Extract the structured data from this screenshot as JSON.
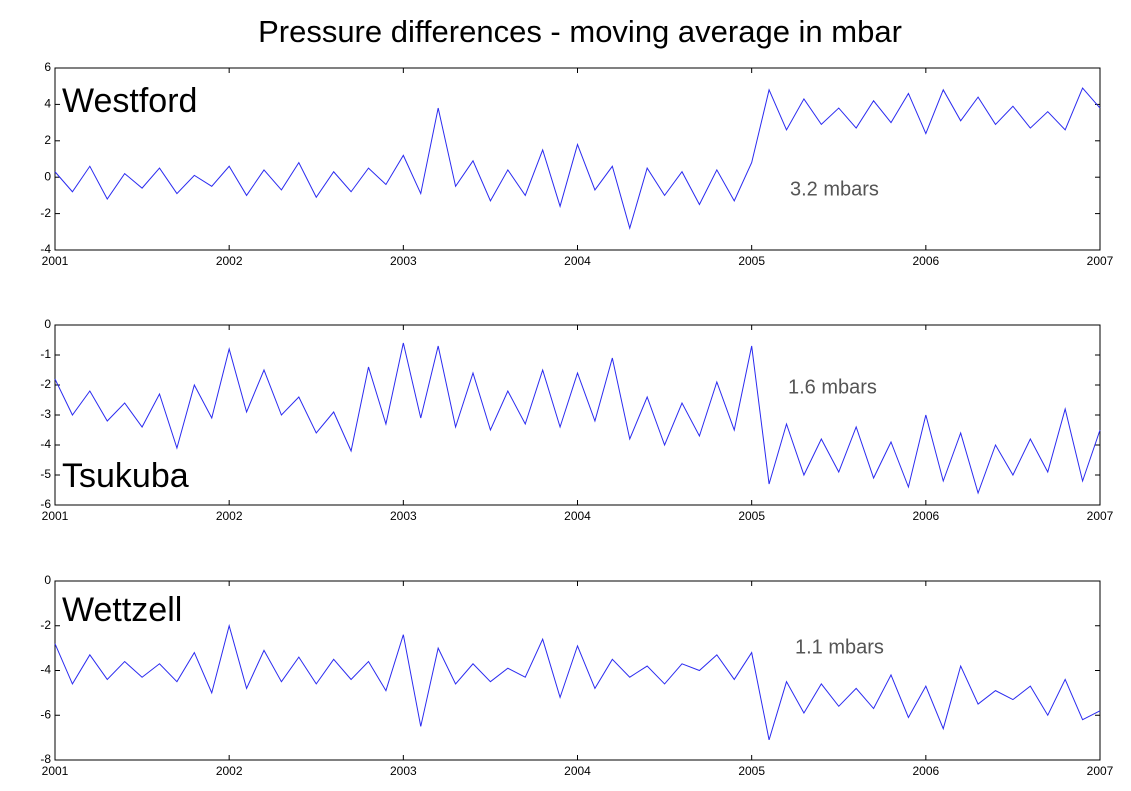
{
  "title": "Pressure differences - moving average in mbar",
  "chart_data": [
    {
      "type": "line",
      "label": "Westford",
      "annotation": "3.2 mbars",
      "color": "#2b2bf0",
      "xlim": [
        2001,
        2007
      ],
      "xticks": [
        2001,
        2002,
        2003,
        2004,
        2005,
        2006,
        2007
      ],
      "ylim": [
        -4,
        6
      ],
      "yticks": [
        -4,
        -2,
        0,
        2,
        4,
        6
      ],
      "x": [
        2001,
        2001.1,
        2001.2,
        2001.3,
        2001.4,
        2001.5,
        2001.6,
        2001.7,
        2001.8,
        2001.9,
        2002,
        2002.1,
        2002.2,
        2002.3,
        2002.4,
        2002.5,
        2002.6,
        2002.7,
        2002.8,
        2002.9,
        2003,
        2003.1,
        2003.2,
        2003.3,
        2003.4,
        2003.5,
        2003.6,
        2003.7,
        2003.8,
        2003.9,
        2004,
        2004.1,
        2004.2,
        2004.3,
        2004.4,
        2004.5,
        2004.6,
        2004.7,
        2004.8,
        2004.9,
        2005,
        2005.1,
        2005.2,
        2005.3,
        2005.4,
        2005.5,
        2005.6,
        2005.7,
        2005.8,
        2005.9,
        2006,
        2006.1,
        2006.2,
        2006.3,
        2006.4,
        2006.5,
        2006.6,
        2006.7,
        2006.8,
        2006.9,
        2007
      ],
      "values": [
        0.3,
        -0.8,
        0.6,
        -1.2,
        0.2,
        -0.6,
        0.5,
        -0.9,
        0.1,
        -0.5,
        0.6,
        -1.0,
        0.4,
        -0.7,
        0.8,
        -1.1,
        0.3,
        -0.8,
        0.5,
        -0.4,
        1.2,
        -0.9,
        3.8,
        -0.5,
        0.9,
        -1.3,
        0.4,
        -1.0,
        1.5,
        -1.6,
        1.8,
        -0.7,
        0.6,
        -2.8,
        0.5,
        -1.0,
        0.3,
        -1.5,
        0.4,
        -1.3,
        0.8,
        4.8,
        2.6,
        4.3,
        2.9,
        3.8,
        2.7,
        4.2,
        3.0,
        4.6,
        2.4,
        4.8,
        3.1,
        4.4,
        2.9,
        3.9,
        2.7,
        3.6,
        2.6,
        4.9,
        3.8
      ]
    },
    {
      "type": "line",
      "label": "Tsukuba",
      "annotation": "1.6 mbars",
      "color": "#2b2bf0",
      "xlim": [
        2001,
        2007
      ],
      "xticks": [
        2001,
        2002,
        2003,
        2004,
        2005,
        2006,
        2007
      ],
      "ylim": [
        -6,
        0
      ],
      "yticks": [
        -6,
        -5,
        -4,
        -3,
        -2,
        -1,
        0
      ],
      "x": [
        2001,
        2001.1,
        2001.2,
        2001.3,
        2001.4,
        2001.5,
        2001.6,
        2001.7,
        2001.8,
        2001.9,
        2002,
        2002.1,
        2002.2,
        2002.3,
        2002.4,
        2002.5,
        2002.6,
        2002.7,
        2002.8,
        2002.9,
        2003,
        2003.1,
        2003.2,
        2003.3,
        2003.4,
        2003.5,
        2003.6,
        2003.7,
        2003.8,
        2003.9,
        2004,
        2004.1,
        2004.2,
        2004.3,
        2004.4,
        2004.5,
        2004.6,
        2004.7,
        2004.8,
        2004.9,
        2005,
        2005.1,
        2005.2,
        2005.3,
        2005.4,
        2005.5,
        2005.6,
        2005.7,
        2005.8,
        2005.9,
        2006,
        2006.1,
        2006.2,
        2006.3,
        2006.4,
        2006.5,
        2006.6,
        2006.7,
        2006.8,
        2006.9,
        2007
      ],
      "values": [
        -1.8,
        -3.0,
        -2.2,
        -3.2,
        -2.6,
        -3.4,
        -2.3,
        -4.1,
        -2.0,
        -3.1,
        -0.8,
        -2.9,
        -1.5,
        -3.0,
        -2.4,
        -3.6,
        -2.9,
        -4.2,
        -1.4,
        -3.3,
        -0.6,
        -3.1,
        -0.7,
        -3.4,
        -1.6,
        -3.5,
        -2.2,
        -3.3,
        -1.5,
        -3.4,
        -1.6,
        -3.2,
        -1.1,
        -3.8,
        -2.4,
        -4.0,
        -2.6,
        -3.7,
        -1.9,
        -3.5,
        -0.7,
        -5.3,
        -3.3,
        -5.0,
        -3.8,
        -4.9,
        -3.4,
        -5.1,
        -3.9,
        -5.4,
        -3.0,
        -5.2,
        -3.6,
        -5.6,
        -4.0,
        -5.0,
        -3.8,
        -4.9,
        -2.8,
        -5.2,
        -3.5
      ]
    },
    {
      "type": "line",
      "label": "Wettzell",
      "annotation": "1.1 mbars",
      "color": "#2b2bf0",
      "xlim": [
        2001,
        2007
      ],
      "xticks": [
        2001,
        2002,
        2003,
        2004,
        2005,
        2006,
        2007
      ],
      "ylim": [
        -8,
        0
      ],
      "yticks": [
        -8,
        -6,
        -4,
        -2,
        0
      ],
      "x": [
        2001,
        2001.1,
        2001.2,
        2001.3,
        2001.4,
        2001.5,
        2001.6,
        2001.7,
        2001.8,
        2001.9,
        2002,
        2002.1,
        2002.2,
        2002.3,
        2002.4,
        2002.5,
        2002.6,
        2002.7,
        2002.8,
        2002.9,
        2003,
        2003.1,
        2003.2,
        2003.3,
        2003.4,
        2003.5,
        2003.6,
        2003.7,
        2003.8,
        2003.9,
        2004,
        2004.1,
        2004.2,
        2004.3,
        2004.4,
        2004.5,
        2004.6,
        2004.7,
        2004.8,
        2004.9,
        2005,
        2005.1,
        2005.2,
        2005.3,
        2005.4,
        2005.5,
        2005.6,
        2005.7,
        2005.8,
        2005.9,
        2006,
        2006.1,
        2006.2,
        2006.3,
        2006.4,
        2006.5,
        2006.6,
        2006.7,
        2006.8,
        2006.9,
        2007
      ],
      "values": [
        -2.8,
        -4.6,
        -3.3,
        -4.4,
        -3.6,
        -4.3,
        -3.7,
        -4.5,
        -3.2,
        -5.0,
        -2.0,
        -4.8,
        -3.1,
        -4.5,
        -3.4,
        -4.6,
        -3.5,
        -4.4,
        -3.6,
        -4.9,
        -2.4,
        -6.5,
        -3.0,
        -4.6,
        -3.7,
        -4.5,
        -3.9,
        -4.3,
        -2.6,
        -5.2,
        -2.9,
        -4.8,
        -3.5,
        -4.3,
        -3.8,
        -4.6,
        -3.7,
        -4.0,
        -3.3,
        -4.4,
        -3.2,
        -7.1,
        -4.5,
        -5.9,
        -4.6,
        -5.6,
        -4.8,
        -5.7,
        -4.2,
        -6.1,
        -4.7,
        -6.6,
        -3.8,
        -5.5,
        -4.9,
        -5.3,
        -4.7,
        -6.0,
        -4.4,
        -6.2,
        -5.8
      ]
    }
  ]
}
